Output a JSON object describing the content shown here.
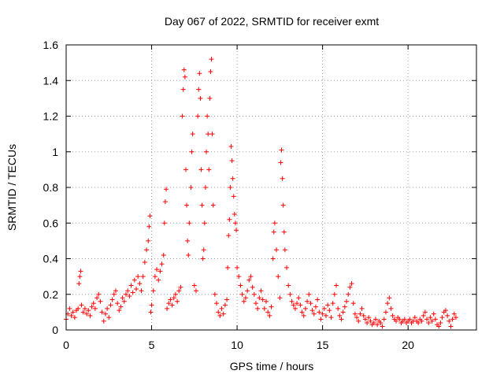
{
  "chart_data": {
    "type": "scatter",
    "title": "Day 067 of 2022, SRMTID for receiver exmt",
    "xlabel": "GPS time / hours",
    "ylabel": "SRMTID / TECUs",
    "xlim": [
      0,
      24
    ],
    "ylim": [
      0,
      1.6
    ],
    "x_ticks": [
      0,
      5,
      10,
      15,
      20
    ],
    "x_tick_labels": [
      "0",
      "5",
      "10",
      "15",
      "20"
    ],
    "y_ticks": [
      0,
      0.2,
      0.4,
      0.6,
      0.8,
      1.0,
      1.2,
      1.4,
      1.6
    ],
    "y_tick_labels": [
      "0",
      "0.2",
      "0.4",
      "0.6",
      "0.8",
      "1",
      "1.2",
      "1.4",
      "1.6"
    ],
    "grid": true,
    "marker": "+",
    "color": "#ff0000",
    "series": [
      {
        "name": "SRMTID",
        "points": [
          [
            0.0,
            0.06
          ],
          [
            0.1,
            0.09
          ],
          [
            0.2,
            0.12
          ],
          [
            0.3,
            0.08
          ],
          [
            0.4,
            0.1
          ],
          [
            0.5,
            0.07
          ],
          [
            0.6,
            0.11
          ],
          [
            0.7,
            0.12
          ],
          [
            0.75,
            0.26
          ],
          [
            0.8,
            0.3
          ],
          [
            0.85,
            0.33
          ],
          [
            0.9,
            0.14
          ],
          [
            1.0,
            0.1
          ],
          [
            1.1,
            0.12
          ],
          [
            1.2,
            0.09
          ],
          [
            1.3,
            0.11
          ],
          [
            1.4,
            0.08
          ],
          [
            1.5,
            0.13
          ],
          [
            1.6,
            0.15
          ],
          [
            1.7,
            0.12
          ],
          [
            1.8,
            0.18
          ],
          [
            1.9,
            0.2
          ],
          [
            2.0,
            0.16
          ],
          [
            2.1,
            0.1
          ],
          [
            2.2,
            0.05
          ],
          [
            2.3,
            0.09
          ],
          [
            2.4,
            0.12
          ],
          [
            2.5,
            0.07
          ],
          [
            2.6,
            0.14
          ],
          [
            2.7,
            0.17
          ],
          [
            2.8,
            0.2
          ],
          [
            2.9,
            0.22
          ],
          [
            3.0,
            0.15
          ],
          [
            3.1,
            0.11
          ],
          [
            3.2,
            0.13
          ],
          [
            3.3,
            0.18
          ],
          [
            3.4,
            0.16
          ],
          [
            3.5,
            0.2
          ],
          [
            3.6,
            0.22
          ],
          [
            3.7,
            0.19
          ],
          [
            3.8,
            0.25
          ],
          [
            3.9,
            0.21
          ],
          [
            4.0,
            0.28
          ],
          [
            4.1,
            0.23
          ],
          [
            4.2,
            0.3
          ],
          [
            4.3,
            0.26
          ],
          [
            4.4,
            0.22
          ],
          [
            4.5,
            0.3
          ],
          [
            4.6,
            0.38
          ],
          [
            4.7,
            0.45
          ],
          [
            4.8,
            0.5
          ],
          [
            4.85,
            0.58
          ],
          [
            4.9,
            0.64
          ],
          [
            4.95,
            0.1
          ],
          [
            5.0,
            0.14
          ],
          [
            5.1,
            0.22
          ],
          [
            5.2,
            0.3
          ],
          [
            5.3,
            0.34
          ],
          [
            5.4,
            0.28
          ],
          [
            5.5,
            0.33
          ],
          [
            5.6,
            0.37
          ],
          [
            5.7,
            0.42
          ],
          [
            5.75,
            0.6
          ],
          [
            5.8,
            0.72
          ],
          [
            5.85,
            0.79
          ],
          [
            5.9,
            0.12
          ],
          [
            6.0,
            0.15
          ],
          [
            6.1,
            0.17
          ],
          [
            6.2,
            0.14
          ],
          [
            6.3,
            0.18
          ],
          [
            6.4,
            0.2
          ],
          [
            6.5,
            0.16
          ],
          [
            6.6,
            0.22
          ],
          [
            6.7,
            0.24
          ],
          [
            6.8,
            1.2
          ],
          [
            6.85,
            1.35
          ],
          [
            6.9,
            1.46
          ],
          [
            6.95,
            1.42
          ],
          [
            7.0,
            0.9
          ],
          [
            7.05,
            0.7
          ],
          [
            7.1,
            0.5
          ],
          [
            7.15,
            0.42
          ],
          [
            7.2,
            0.6
          ],
          [
            7.3,
            0.8
          ],
          [
            7.35,
            1.0
          ],
          [
            7.4,
            1.1
          ],
          [
            7.5,
            0.25
          ],
          [
            7.6,
            0.22
          ],
          [
            7.7,
            1.2
          ],
          [
            7.75,
            1.35
          ],
          [
            7.8,
            1.44
          ],
          [
            7.85,
            1.3
          ],
          [
            7.9,
            0.9
          ],
          [
            7.95,
            0.7
          ],
          [
            8.0,
            0.4
          ],
          [
            8.05,
            0.45
          ],
          [
            8.1,
            0.6
          ],
          [
            8.15,
            0.8
          ],
          [
            8.2,
            1.0
          ],
          [
            8.25,
            1.2
          ],
          [
            8.3,
            1.1
          ],
          [
            8.35,
            0.9
          ],
          [
            8.4,
            1.3
          ],
          [
            8.45,
            1.45
          ],
          [
            8.5,
            1.52
          ],
          [
            8.55,
            1.1
          ],
          [
            8.6,
            0.7
          ],
          [
            8.7,
            0.2
          ],
          [
            8.8,
            0.15
          ],
          [
            8.9,
            0.1
          ],
          [
            9.0,
            0.08
          ],
          [
            9.1,
            0.12
          ],
          [
            9.2,
            0.09
          ],
          [
            9.3,
            0.14
          ],
          [
            9.4,
            0.17
          ],
          [
            9.45,
            0.35
          ],
          [
            9.5,
            0.53
          ],
          [
            9.55,
            0.62
          ],
          [
            9.6,
            0.8
          ],
          [
            9.65,
            1.03
          ],
          [
            9.7,
            0.95
          ],
          [
            9.75,
            0.85
          ],
          [
            9.8,
            0.75
          ],
          [
            9.85,
            0.65
          ],
          [
            9.9,
            0.6
          ],
          [
            9.95,
            0.56
          ],
          [
            10.0,
            0.35
          ],
          [
            10.1,
            0.3
          ],
          [
            10.2,
            0.25
          ],
          [
            10.3,
            0.2
          ],
          [
            10.4,
            0.16
          ],
          [
            10.5,
            0.18
          ],
          [
            10.6,
            0.22
          ],
          [
            10.7,
            0.28
          ],
          [
            10.8,
            0.3
          ],
          [
            10.9,
            0.24
          ],
          [
            11.0,
            0.2
          ],
          [
            11.1,
            0.15
          ],
          [
            11.2,
            0.12
          ],
          [
            11.3,
            0.18
          ],
          [
            11.4,
            0.22
          ],
          [
            11.5,
            0.17
          ],
          [
            11.6,
            0.12
          ],
          [
            11.7,
            0.16
          ],
          [
            11.8,
            0.1
          ],
          [
            11.9,
            0.08
          ],
          [
            12.0,
            0.13
          ],
          [
            12.1,
            0.4
          ],
          [
            12.15,
            0.55
          ],
          [
            12.2,
            0.6
          ],
          [
            12.3,
            0.45
          ],
          [
            12.4,
            0.3
          ],
          [
            12.5,
            0.18
          ],
          [
            12.55,
            0.94
          ],
          [
            12.6,
            1.01
          ],
          [
            12.65,
            0.85
          ],
          [
            12.7,
            0.7
          ],
          [
            12.75,
            0.55
          ],
          [
            12.8,
            0.45
          ],
          [
            12.9,
            0.35
          ],
          [
            13.0,
            0.25
          ],
          [
            13.1,
            0.2
          ],
          [
            13.2,
            0.16
          ],
          [
            13.3,
            0.14
          ],
          [
            13.4,
            0.12
          ],
          [
            13.5,
            0.15
          ],
          [
            13.6,
            0.18
          ],
          [
            13.7,
            0.14
          ],
          [
            13.8,
            0.1
          ],
          [
            13.9,
            0.08
          ],
          [
            14.0,
            0.12
          ],
          [
            14.1,
            0.16
          ],
          [
            14.2,
            0.2
          ],
          [
            14.3,
            0.15
          ],
          [
            14.4,
            0.11
          ],
          [
            14.5,
            0.09
          ],
          [
            14.6,
            0.13
          ],
          [
            14.7,
            0.17
          ],
          [
            14.8,
            0.1
          ],
          [
            14.9,
            0.06
          ],
          [
            15.0,
            0.09
          ],
          [
            15.1,
            0.12
          ],
          [
            15.2,
            0.08
          ],
          [
            15.3,
            0.14
          ],
          [
            15.4,
            0.11
          ],
          [
            15.5,
            0.07
          ],
          [
            15.6,
            0.15
          ],
          [
            15.7,
            0.2
          ],
          [
            15.8,
            0.25
          ],
          [
            15.9,
            0.12
          ],
          [
            16.0,
            0.08
          ],
          [
            16.1,
            0.06
          ],
          [
            16.2,
            0.1
          ],
          [
            16.3,
            0.13
          ],
          [
            16.4,
            0.16
          ],
          [
            16.5,
            0.2
          ],
          [
            16.6,
            0.24
          ],
          [
            16.7,
            0.26
          ],
          [
            16.8,
            0.15
          ],
          [
            16.9,
            0.09
          ],
          [
            17.0,
            0.07
          ],
          [
            17.1,
            0.05
          ],
          [
            17.2,
            0.09
          ],
          [
            17.3,
            0.12
          ],
          [
            17.4,
            0.08
          ],
          [
            17.5,
            0.06
          ],
          [
            17.6,
            0.04
          ],
          [
            17.7,
            0.07
          ],
          [
            17.8,
            0.05
          ],
          [
            17.9,
            0.03
          ],
          [
            18.0,
            0.04
          ],
          [
            18.1,
            0.06
          ],
          [
            18.2,
            0.03
          ],
          [
            18.3,
            0.05
          ],
          [
            18.4,
            0.04
          ],
          [
            18.5,
            0.02
          ],
          [
            18.6,
            0.06
          ],
          [
            18.7,
            0.1
          ],
          [
            18.8,
            0.15
          ],
          [
            18.9,
            0.18
          ],
          [
            19.0,
            0.12
          ],
          [
            19.1,
            0.08
          ],
          [
            19.2,
            0.06
          ],
          [
            19.3,
            0.05
          ],
          [
            19.4,
            0.07
          ],
          [
            19.5,
            0.06
          ],
          [
            19.6,
            0.04
          ],
          [
            19.7,
            0.05
          ],
          [
            19.8,
            0.06
          ],
          [
            19.9,
            0.04
          ],
          [
            20.0,
            0.05
          ],
          [
            20.1,
            0.06
          ],
          [
            20.2,
            0.04
          ],
          [
            20.3,
            0.05
          ],
          [
            20.4,
            0.07
          ],
          [
            20.5,
            0.05
          ],
          [
            20.6,
            0.04
          ],
          [
            20.7,
            0.06
          ],
          [
            20.8,
            0.05
          ],
          [
            20.9,
            0.08
          ],
          [
            21.0,
            0.1
          ],
          [
            21.1,
            0.06
          ],
          [
            21.2,
            0.04
          ],
          [
            21.3,
            0.07
          ],
          [
            21.4,
            0.05
          ],
          [
            21.5,
            0.09
          ],
          [
            21.6,
            0.06
          ],
          [
            21.7,
            0.03
          ],
          [
            21.8,
            0.02
          ],
          [
            21.9,
            0.04
          ],
          [
            22.0,
            0.07
          ],
          [
            22.1,
            0.1
          ],
          [
            22.2,
            0.11
          ],
          [
            22.3,
            0.08
          ],
          [
            22.4,
            0.05
          ],
          [
            22.5,
            0.02
          ],
          [
            22.6,
            0.06
          ],
          [
            22.7,
            0.09
          ],
          [
            22.8,
            0.07
          ]
        ]
      }
    ]
  }
}
